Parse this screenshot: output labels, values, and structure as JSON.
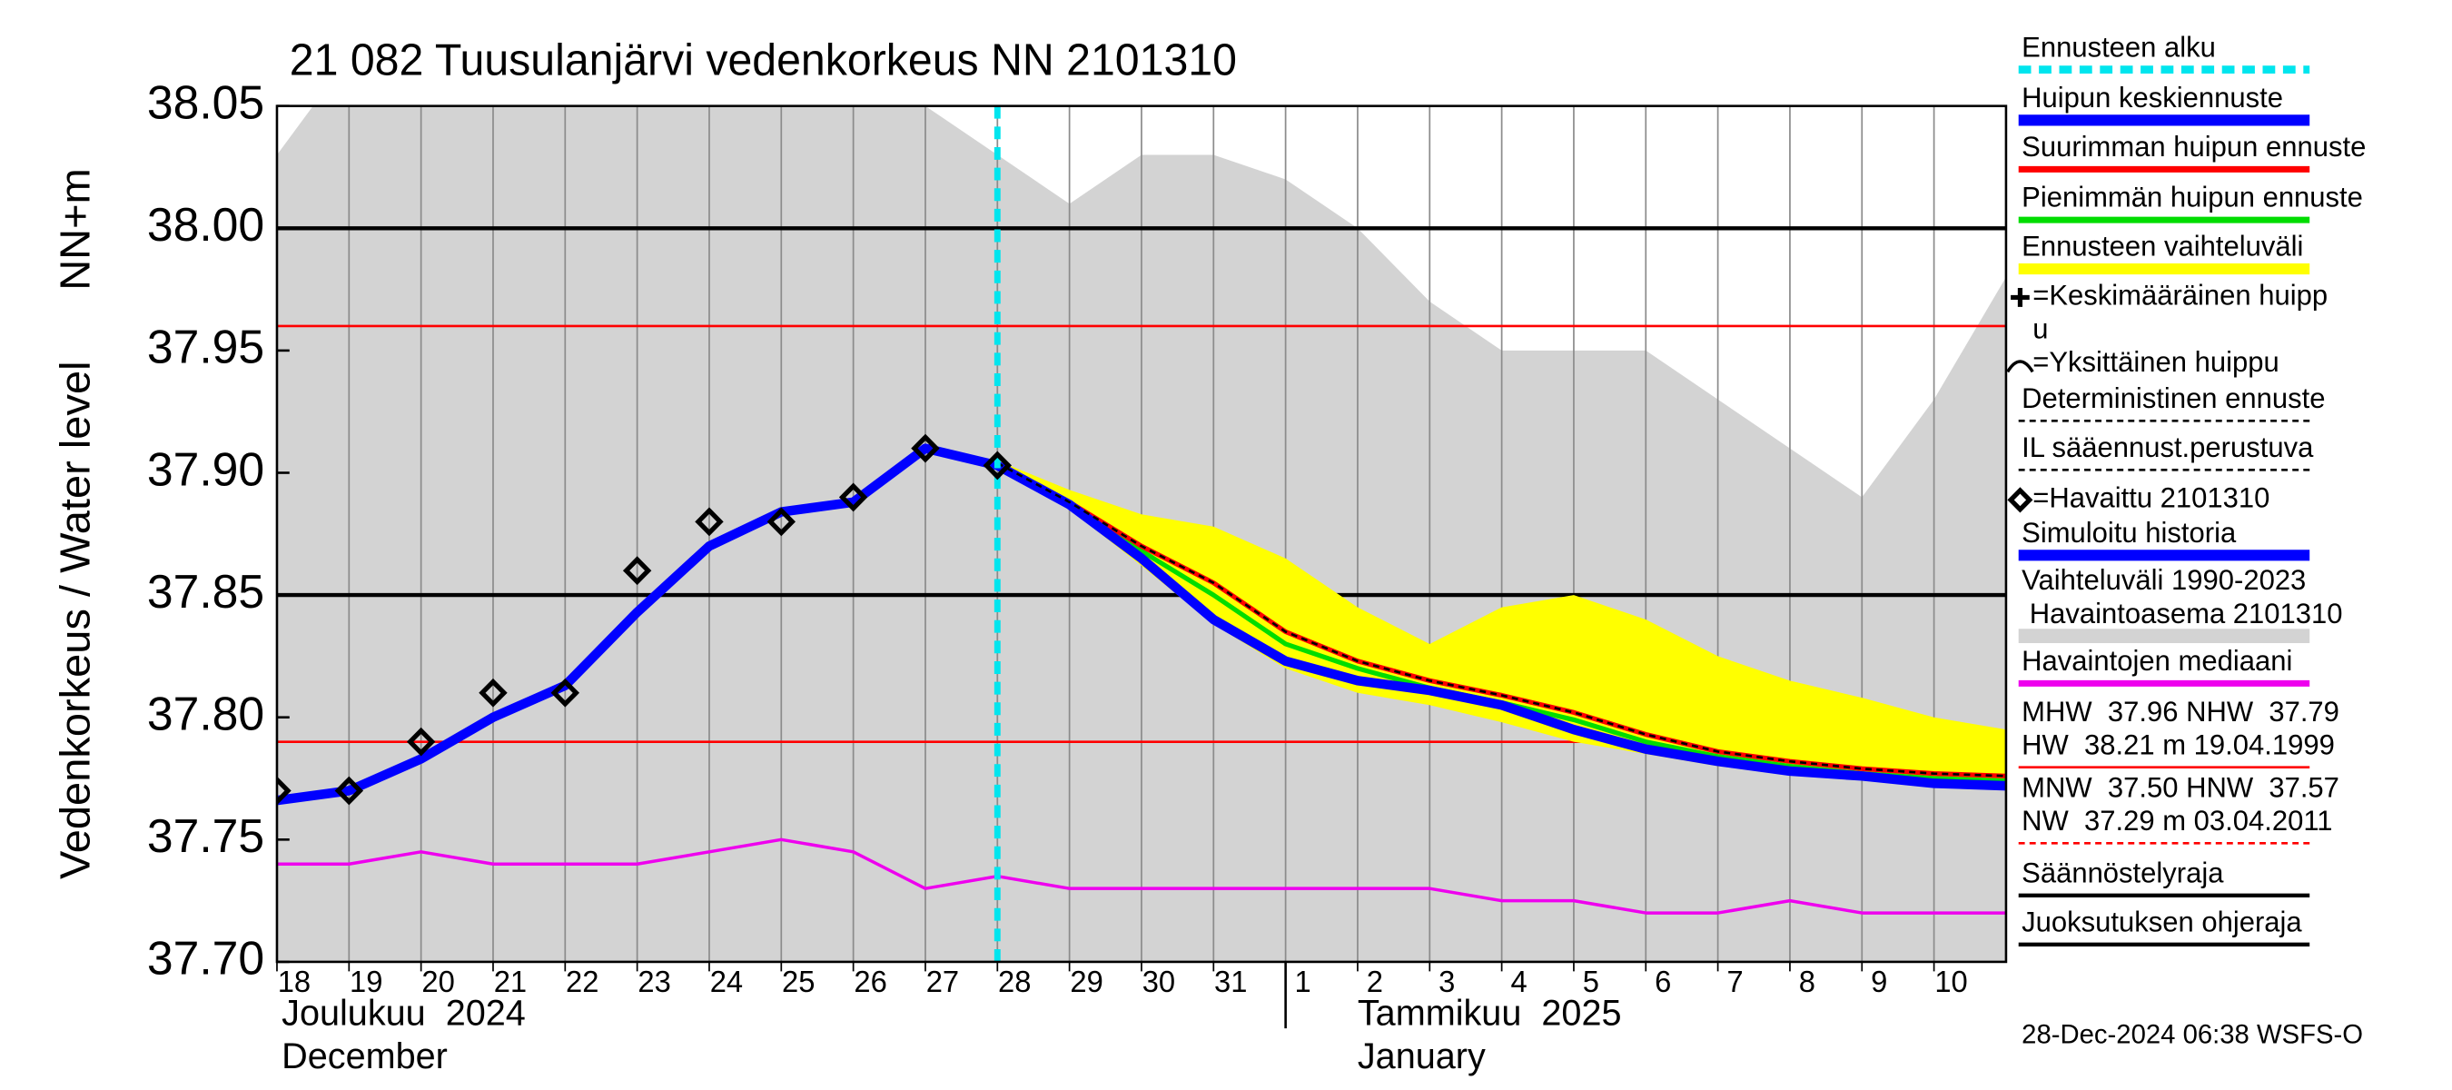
{
  "chart_data": {
    "type": "line",
    "title": "21 082 Tuusulanjärvi vedenkorkeus NN 2101310",
    "y_label": "Vedenkorkeus / Water level",
    "y_unit_label": "NN+m",
    "timestamp": "28-Dec-2024 06:38 WSFS-O",
    "x_sublabels": [
      [
        "Joulukuu  2024",
        "December"
      ],
      [
        "Tammikuu  2025",
        "January"
      ]
    ],
    "xlim": [
      0,
      24
    ],
    "xticks": [
      {
        "value": 0,
        "label": "18"
      },
      {
        "value": 1,
        "label": "19"
      },
      {
        "value": 2,
        "label": "20"
      },
      {
        "value": 3,
        "label": "21"
      },
      {
        "value": 4,
        "label": "22"
      },
      {
        "value": 5,
        "label": "23"
      },
      {
        "value": 6,
        "label": "24"
      },
      {
        "value": 7,
        "label": "25"
      },
      {
        "value": 8,
        "label": "26"
      },
      {
        "value": 9,
        "label": "27"
      },
      {
        "value": 10,
        "label": "28"
      },
      {
        "value": 11,
        "label": "29"
      },
      {
        "value": 12,
        "label": "30"
      },
      {
        "value": 13,
        "label": "31"
      },
      {
        "value": 14,
        "label": "1"
      },
      {
        "value": 15,
        "label": "2"
      },
      {
        "value": 16,
        "label": "3"
      },
      {
        "value": 17,
        "label": "4"
      },
      {
        "value": 18,
        "label": "5"
      },
      {
        "value": 19,
        "label": "6"
      },
      {
        "value": 20,
        "label": "7"
      },
      {
        "value": 21,
        "label": "8"
      },
      {
        "value": 22,
        "label": "9"
      },
      {
        "value": 23,
        "label": "10"
      }
    ],
    "ylim": [
      37.7,
      38.05
    ],
    "yticks": [
      {
        "value": 37.7,
        "label": "37.70"
      },
      37.75,
      {
        "value": 37.8,
        "label": "37.80"
      },
      37.85,
      {
        "value": 37.9,
        "label": "37.90"
      },
      37.95,
      {
        "value": 38.0,
        "label": "38.00"
      },
      38.05
    ],
    "grid": "x",
    "series": [
      {
        "name": "Ennusteen alku",
        "color": "#00e5ee",
        "style": "vline",
        "x": 10
      },
      {
        "name": "Huipun keskiennuste",
        "color": "#0000ff",
        "style": "thick",
        "x": [
          10,
          11,
          12,
          13,
          14,
          15,
          16,
          17,
          18,
          19,
          20,
          21,
          22,
          23,
          24
        ],
        "values": [
          37.903,
          37.887,
          37.865,
          37.84,
          37.823,
          37.815,
          37.811,
          37.805,
          37.795,
          37.787,
          37.782,
          37.778,
          37.776,
          37.773,
          37.772
        ]
      },
      {
        "name": "Suurimman huipun ennuste",
        "color": "#ff0000",
        "style": "line",
        "x": [
          10,
          11,
          12,
          13,
          14,
          15,
          16,
          17,
          18,
          19,
          20,
          21,
          22,
          23,
          24
        ],
        "values": [
          37.904,
          37.888,
          37.87,
          37.855,
          37.835,
          37.823,
          37.815,
          37.809,
          37.802,
          37.793,
          37.786,
          37.782,
          37.779,
          37.777,
          37.776
        ]
      },
      {
        "name": "Pienimmän huipun ennuste",
        "color": "#00dd00",
        "style": "line",
        "x": [
          10,
          11,
          12,
          13,
          14,
          15,
          16,
          17,
          18,
          19,
          20,
          21,
          22,
          23,
          24
        ],
        "values": [
          37.903,
          37.887,
          37.868,
          37.85,
          37.83,
          37.82,
          37.812,
          37.806,
          37.799,
          37.79,
          37.784,
          37.78,
          37.777,
          37.775,
          37.774
        ]
      },
      {
        "name": "Ennusteen vaihteluväli",
        "color": "#ffff00",
        "style": "band",
        "x": [
          10,
          11,
          12,
          13,
          14,
          15,
          16,
          17,
          18,
          19,
          20,
          21,
          22,
          23,
          24
        ],
        "upper": [
          37.905,
          37.893,
          37.883,
          37.878,
          37.865,
          37.845,
          37.83,
          37.845,
          37.85,
          37.84,
          37.825,
          37.815,
          37.808,
          37.8,
          37.795
        ],
        "lower": [
          37.903,
          37.885,
          37.862,
          37.838,
          37.82,
          37.81,
          37.805,
          37.798,
          37.79,
          37.785,
          37.78,
          37.777,
          37.775,
          37.773,
          37.772
        ]
      },
      {
        "name": [
          "=Keskimääräinen huipp",
          "u"
        ],
        "color": "#000000",
        "style": "icon-plus"
      },
      {
        "name": "=Yksittäinen huippu",
        "color": "#000000",
        "style": "icon-arc"
      },
      {
        "name": "Deterministinen ennuste",
        "color": "#000000",
        "style": "dashed",
        "x": [
          10,
          11,
          12,
          13,
          14,
          15,
          16,
          17,
          18,
          19,
          20,
          21,
          22,
          23,
          24
        ],
        "values": [
          37.904,
          37.888,
          37.87,
          37.855,
          37.835,
          37.823,
          37.815,
          37.809,
          37.802,
          37.793,
          37.786,
          37.782,
          37.779,
          37.777,
          37.776
        ]
      },
      {
        "name": "IL sääennust.perustuva",
        "color": "#000000",
        "style": "dashed"
      },
      {
        "name": "=Havaittu 2101310",
        "color": "#000000",
        "style": "markers",
        "x": [
          0,
          1,
          2,
          3,
          4,
          5,
          6,
          7,
          8,
          9,
          10
        ],
        "values": [
          37.77,
          37.77,
          37.79,
          37.81,
          37.81,
          37.86,
          37.88,
          37.88,
          37.89,
          37.91,
          37.903
        ]
      },
      {
        "name": "Simuloitu historia",
        "color": "#0000ff",
        "style": "thick",
        "x": [
          0,
          1,
          2,
          3,
          4,
          5,
          6,
          7,
          8,
          9,
          10
        ],
        "values": [
          37.766,
          37.77,
          37.783,
          37.8,
          37.813,
          37.843,
          37.87,
          37.884,
          37.888,
          37.91,
          37.903
        ]
      },
      {
        "name": [
          "Vaihteluväli 1990-2023",
          " Havaintoasema 2101310"
        ],
        "color": "#d3d3d3",
        "style": "area",
        "x": [
          0,
          0.5,
          9,
          10,
          11,
          12,
          13,
          14,
          15,
          16,
          17,
          18,
          19,
          20,
          21,
          22,
          23,
          24
        ],
        "values": [
          38.03,
          38.05,
          38.05,
          38.03,
          38.01,
          38.03,
          38.03,
          38.02,
          38.0,
          37.97,
          37.95,
          37.95,
          37.95,
          37.93,
          37.91,
          37.89,
          37.93,
          37.98
        ]
      },
      {
        "name": "Havaintojen mediaani",
        "color": "#ee00ee",
        "style": "line",
        "x": [
          0,
          1,
          2,
          3,
          4,
          5,
          6,
          7,
          8,
          9,
          10,
          11,
          12,
          13,
          14,
          15,
          16,
          17,
          18,
          19,
          20,
          21,
          22,
          23,
          24
        ],
        "values": [
          37.74,
          37.74,
          37.745,
          37.74,
          37.74,
          37.74,
          37.745,
          37.75,
          37.745,
          37.73,
          37.735,
          37.73,
          37.73,
          37.73,
          37.73,
          37.73,
          37.73,
          37.725,
          37.725,
          37.72,
          37.72,
          37.725,
          37.72,
          37.72,
          37.72
        ]
      },
      {
        "name": [
          "MHW  37.96 NHW  37.79",
          "HW  38.21 m 19.04.1999"
        ],
        "color": "#ff0000",
        "style": "hline",
        "values": [
          37.96,
          37.79
        ]
      },
      {
        "name": [
          "MNW  37.50 HNW  37.57",
          "NW  37.29 m 03.04.2011"
        ],
        "color": "#ff0000",
        "style": "hline-dashed"
      },
      {
        "name": "Säännöstelyraja",
        "color": "#000000",
        "style": "hline-bold",
        "values": [
          38.0
        ]
      },
      {
        "name": "Juoksutuksen ohjeraja",
        "color": "#000000",
        "style": "hline-bold",
        "values": [
          37.85
        ]
      }
    ]
  }
}
